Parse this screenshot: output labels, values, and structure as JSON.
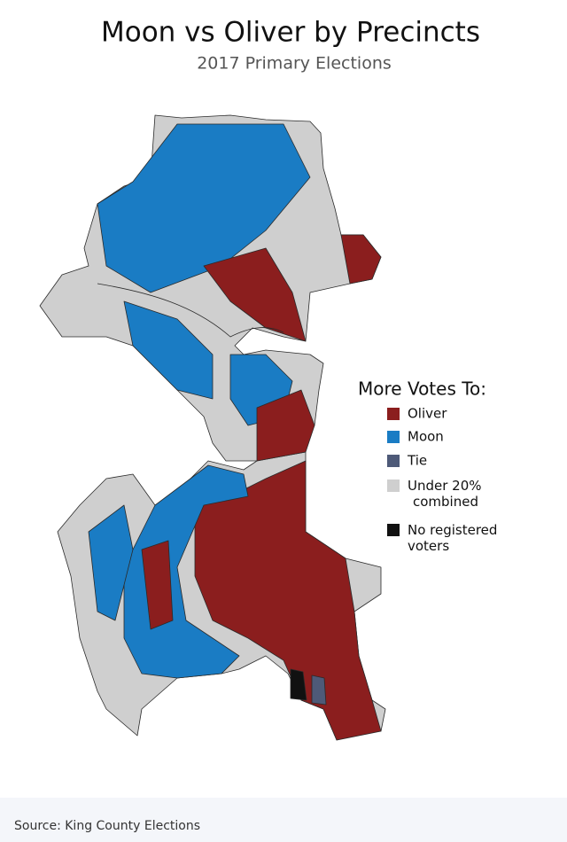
{
  "title": "Moon vs Oliver by Precincts",
  "subtitle": "2017 Primary Elections",
  "legend": {
    "title": "More Votes To:",
    "items": [
      {
        "label": "Oliver",
        "color": "#8b1e1e"
      },
      {
        "label": "Moon",
        "color": "#1a7cc4"
      },
      {
        "label": "Tie",
        "color": "#4e5a78"
      },
      {
        "label": "Under 20% combined",
        "color": "#cfcfcf"
      },
      {
        "label": "No registered voters",
        "color": "#111111"
      }
    ]
  },
  "source": "Source: King County Elections"
}
